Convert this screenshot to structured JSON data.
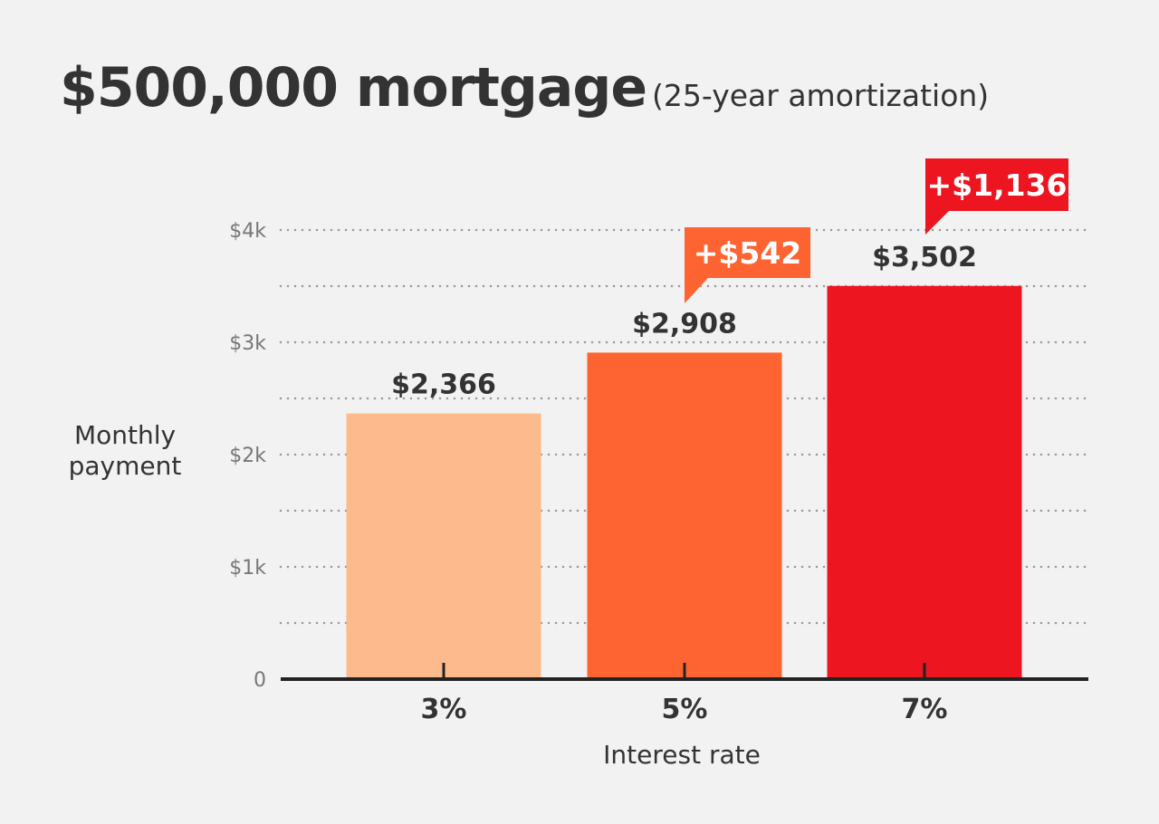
{
  "title": {
    "main": "$500,000 mortgage",
    "sub": "(25-year amortization)"
  },
  "chart_data": {
    "type": "bar",
    "title": "$500,000 mortgage (25-year amortization)",
    "xlabel": "Interest rate",
    "ylabel_lines": [
      "Monthly",
      "payment"
    ],
    "categories": [
      "3%",
      "5%",
      "7%"
    ],
    "values": [
      2366,
      2908,
      3502
    ],
    "value_labels": [
      "$2,366",
      "$2,908",
      "$3,502"
    ],
    "bar_colors": [
      "#fdba8c",
      "#fd6432",
      "#ec1520"
    ],
    "callouts": [
      {
        "category": "5%",
        "label": "+$542",
        "color": "#fd6432"
      },
      {
        "category": "7%",
        "label": "+$1,136",
        "color": "#ec1520"
      }
    ],
    "ylim": [
      0,
      4000
    ],
    "yticks": [
      0,
      1000,
      2000,
      3000,
      4000
    ],
    "ytick_labels": [
      "0",
      "$1k",
      "$2k",
      "$3k",
      "$4k"
    ],
    "grid": "dotted, every 500"
  }
}
